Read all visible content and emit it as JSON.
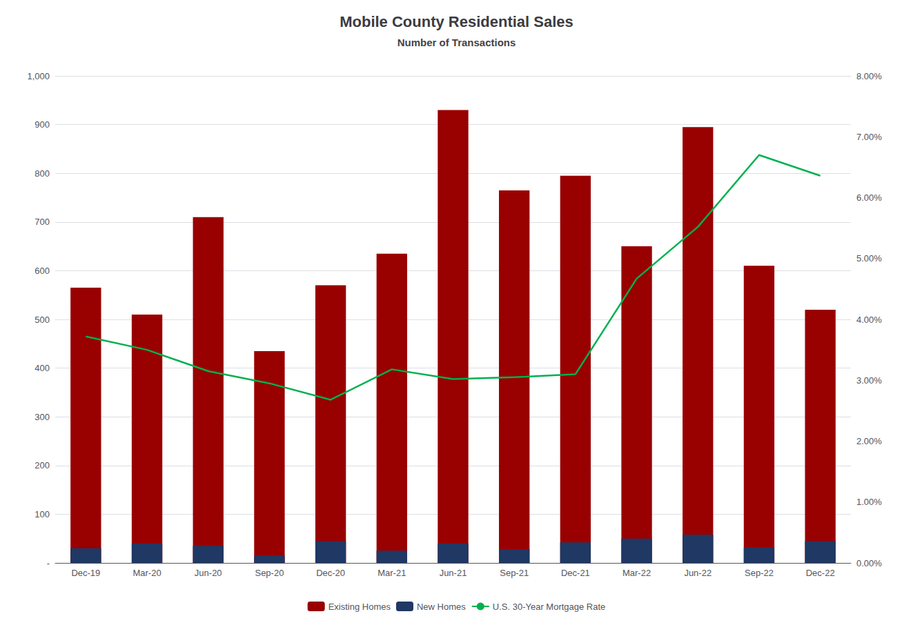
{
  "chart_data": {
    "type": "bar",
    "title": "Mobile County Residential Sales",
    "subtitle": "Number of Transactions",
    "categories": [
      "Dec-19",
      "Mar-20",
      "Jun-20",
      "Sep-20",
      "Dec-20",
      "Mar-21",
      "Jun-21",
      "Sep-21",
      "Dec-21",
      "Mar-22",
      "Jun-22",
      "Sep-22",
      "Dec-22"
    ],
    "series": [
      {
        "name": "Existing Homes",
        "type": "bar",
        "color": "#990000",
        "values": [
          565,
          510,
          710,
          435,
          570,
          635,
          930,
          765,
          795,
          650,
          895,
          610,
          520
        ]
      },
      {
        "name": "New Homes",
        "type": "bar",
        "color": "#1f3864",
        "values": [
          30,
          40,
          35,
          15,
          45,
          25,
          40,
          28,
          42,
          50,
          58,
          32,
          45
        ]
      },
      {
        "name": "U.S. 30-Year Mortgage Rate",
        "type": "line",
        "axis": "y2",
        "color": "#00b050",
        "marker": "none",
        "values": [
          0.0372,
          0.035,
          0.0315,
          0.0295,
          0.0268,
          0.0318,
          0.0302,
          0.0305,
          0.031,
          0.0467,
          0.0552,
          0.067,
          0.0636
        ]
      }
    ],
    "ylim": [
      0,
      1000
    ],
    "yticks": [
      {
        "value": 0,
        "label": "-"
      },
      100,
      200,
      300,
      400,
      500,
      600,
      700,
      800,
      900,
      {
        "value": 1000,
        "label": "1,000"
      }
    ],
    "y2lim": [
      0.0,
      0.08
    ],
    "y2ticks": [
      {
        "value": 0.0,
        "label": "0.00%"
      },
      {
        "value": 0.01,
        "label": "1.00%"
      },
      {
        "value": 0.02,
        "label": "2.00%"
      },
      {
        "value": 0.03,
        "label": "3.00%"
      },
      {
        "value": 0.04,
        "label": "4.00%"
      },
      {
        "value": 0.05,
        "label": "5.00%"
      },
      {
        "value": 0.06,
        "label": "6.00%"
      },
      {
        "value": 0.07,
        "label": "7.00%"
      },
      {
        "value": 0.08,
        "label": "8.00%"
      }
    ],
    "grid": true,
    "legend": "bottom"
  }
}
